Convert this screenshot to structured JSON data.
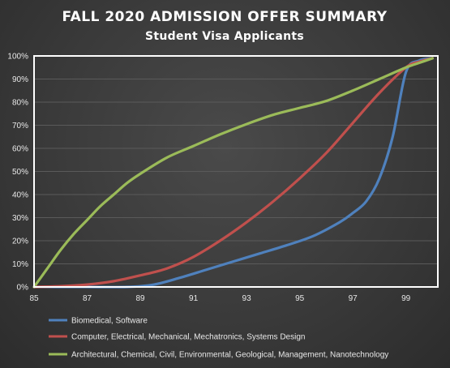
{
  "chart_data": {
    "type": "line",
    "title": "FALL 2020 ADMISSION OFFER SUMMARY",
    "subtitle": "Student Visa Applicants",
    "xlabel": "",
    "ylabel": "",
    "xlim": [
      85,
      100.2
    ],
    "ylim": [
      0,
      100
    ],
    "x_ticks": [
      "85",
      "87",
      "89",
      "91",
      "93",
      "95",
      "97",
      "99"
    ],
    "y_ticks": [
      "0%",
      "10%",
      "20%",
      "30%",
      "40%",
      "50%",
      "60%",
      "70%",
      "80%",
      "90%",
      "100%"
    ],
    "grid": "horizontal",
    "legend_position": "bottom",
    "series": [
      {
        "name": "Biomedical, Software",
        "color": "#4f81bd",
        "x": [
          85,
          87,
          88.5,
          89.5,
          90.5,
          91.5,
          92.5,
          93.5,
          94.5,
          95.5,
          96.5,
          97,
          97.5,
          98,
          98.5,
          99,
          99.5,
          100
        ],
        "values": [
          0,
          0,
          0,
          1,
          4,
          7.5,
          11,
          14.5,
          18,
          22,
          28,
          32,
          37,
          47,
          65,
          93,
          98,
          99
        ]
      },
      {
        "name": "Computer, Electrical, Mechanical, Mechatronics, Systems Design",
        "color": "#c0504d",
        "x": [
          85,
          86,
          87,
          88,
          89,
          90,
          91,
          92,
          93,
          94,
          95,
          96,
          97,
          98,
          99,
          99.5,
          100
        ],
        "values": [
          0,
          0.3,
          1,
          2.5,
          5,
          8,
          13,
          20,
          28,
          37,
          47,
          58,
          71,
          84,
          95,
          97.5,
          99
        ]
      },
      {
        "name": "Architectural, Chemical, Civil, Environmental, Geological, Management, Nanotechnology",
        "color": "#9bbb59",
        "x": [
          85,
          85.5,
          86,
          86.5,
          87,
          87.5,
          88,
          88.5,
          89,
          90,
          91,
          92,
          93,
          94,
          95,
          96,
          97,
          98,
          99,
          99.5,
          100
        ],
        "values": [
          0,
          8,
          16,
          23,
          29,
          35,
          40,
          45,
          49,
          56,
          61,
          66,
          70.5,
          74.5,
          77.5,
          80.5,
          85,
          90,
          95,
          97,
          99
        ]
      }
    ]
  }
}
